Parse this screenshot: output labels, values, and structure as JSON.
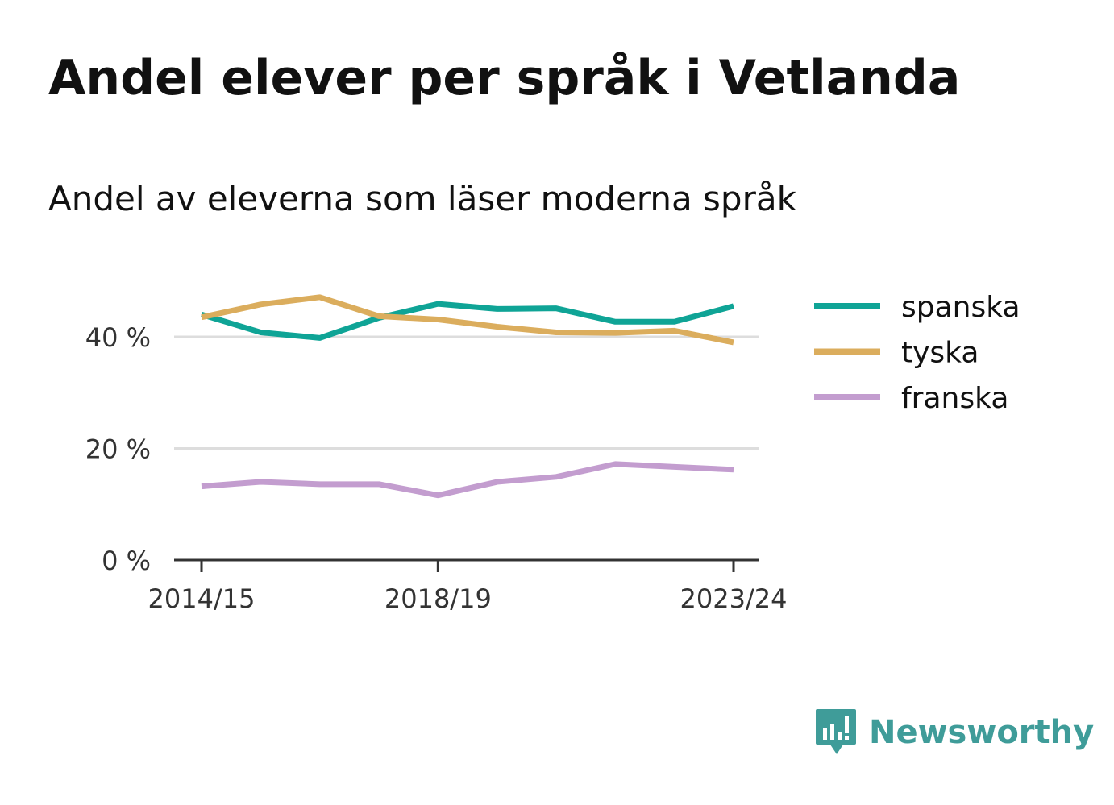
{
  "header": {
    "title": "Andel elever per språk i Vetlanda",
    "subtitle": "Andel av eleverna som läser moderna språk"
  },
  "chart_data": {
    "type": "line",
    "title": "Andel elever per språk i Vetlanda",
    "subtitle": "Andel av eleverna som läser moderna språk",
    "xlabel": "",
    "ylabel": "",
    "x": [
      "2014/15",
      "2015/16",
      "2016/17",
      "2017/18",
      "2018/19",
      "2019/20",
      "2020/21",
      "2021/22",
      "2022/23",
      "2023/24"
    ],
    "x_tick_labels": [
      "2014/15",
      "2018/19",
      "2023/24"
    ],
    "y_ticks": [
      0,
      20,
      40
    ],
    "y_tick_labels": [
      "0 %",
      "20 %",
      "40 %"
    ],
    "ylim": [
      0,
      52
    ],
    "grid": "horizontal",
    "legend_position": "right",
    "series": [
      {
        "name": "spanska",
        "color": "#0fa496",
        "values": [
          44.0,
          40.8,
          39.8,
          43.4,
          45.9,
          45.0,
          45.1,
          42.7,
          42.7,
          45.5
        ]
      },
      {
        "name": "tyska",
        "color": "#dbad5d",
        "values": [
          43.5,
          45.8,
          47.1,
          43.7,
          43.1,
          41.8,
          40.8,
          40.7,
          41.1,
          39.0
        ]
      },
      {
        "name": "franska",
        "color": "#c39dcf",
        "values": [
          13.2,
          14.0,
          13.6,
          13.6,
          11.6,
          14.0,
          14.9,
          17.2,
          16.7,
          16.2
        ]
      }
    ]
  },
  "logo": {
    "text": "Newsworthy",
    "color": "#3f9c99"
  }
}
